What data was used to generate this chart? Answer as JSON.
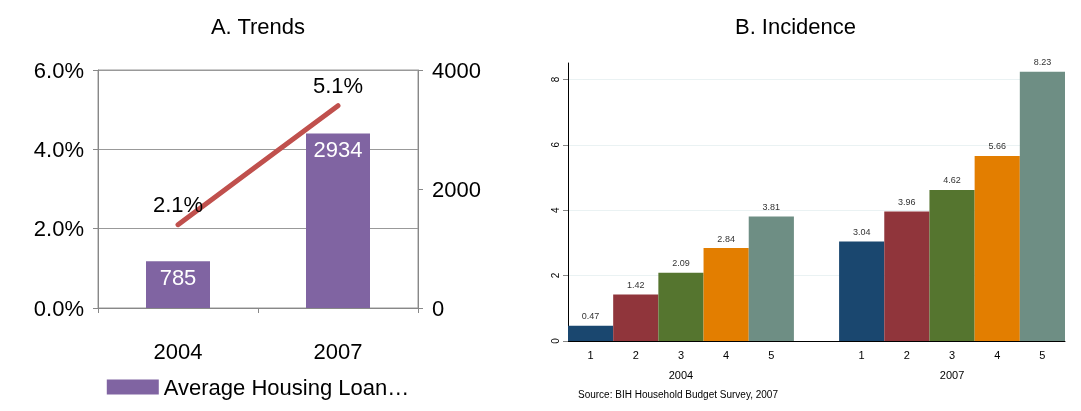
{
  "chart_data": [
    {
      "type": "bar",
      "title": "A. Trends",
      "categories": [
        "2004",
        "2007"
      ],
      "series": [
        {
          "type": "bar",
          "name": "Average Housing Loan…",
          "color": "#8064a2",
          "values": [
            785,
            2934
          ],
          "axis": "y2",
          "data_labels": true
        },
        {
          "type": "line",
          "color": "#c0504d",
          "values": [
            2.1,
            5.1
          ],
          "value_labels": [
            "2.1%",
            "5.1%"
          ],
          "marker": "none"
        }
      ],
      "ylim": [
        0,
        6
      ],
      "yticks": [
        {
          "value": 0,
          "label": "0.0%"
        },
        {
          "value": 2,
          "label": "2.0%"
        },
        {
          "value": 4,
          "label": "4.0%"
        },
        {
          "value": 6,
          "label": "6.0%"
        }
      ],
      "y2lim": [
        0,
        4000
      ],
      "y2ticks": [
        0,
        2000,
        4000
      ],
      "grid": "y",
      "legend": "bottom"
    },
    {
      "type": "bar",
      "title": "B. Incidence",
      "categories": [
        "1",
        "2",
        "3",
        "4",
        "5",
        null,
        "1",
        "2",
        "3",
        "4",
        "5"
      ],
      "values": [
        0.47,
        1.42,
        2.09,
        2.84,
        3.81,
        null,
        3.04,
        3.96,
        4.62,
        5.66,
        8.23
      ],
      "colors": [
        "#1a476f",
        "#90353b",
        "#55752f",
        "#e37e00",
        "#6e8e84",
        null,
        "#1a476f",
        "#90353b",
        "#55752f",
        "#e37e00",
        "#6e8e84"
      ],
      "data_labels": true,
      "ylim": [
        0,
        8.5
      ],
      "yticks": [
        0,
        2,
        4,
        6,
        8
      ],
      "grid": "y",
      "annotations": [
        "2004",
        "2007",
        "Source: BIH Household Budget Survey, 2007"
      ]
    }
  ]
}
